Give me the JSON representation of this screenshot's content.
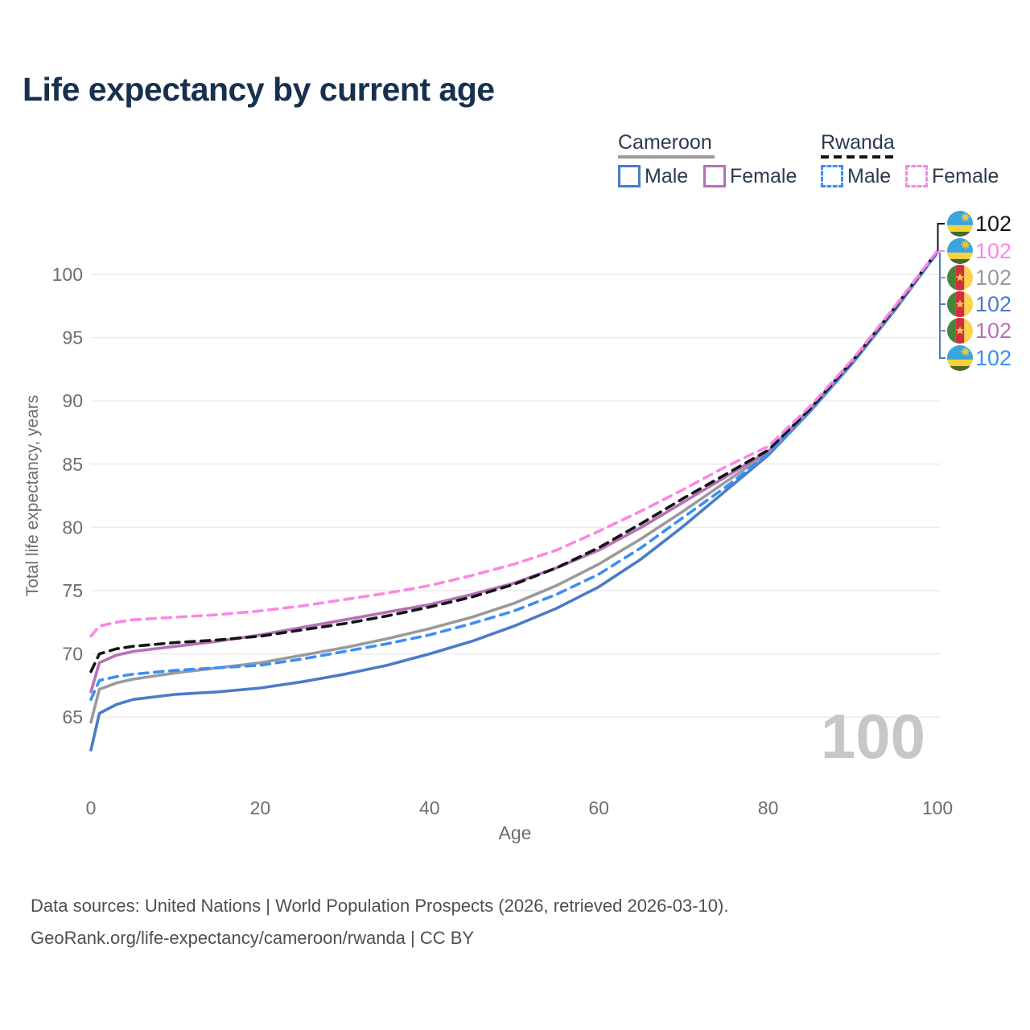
{
  "title": "Life expectancy by current age",
  "legend": {
    "groups": [
      {
        "name": "Cameroon",
        "line_style": "solid",
        "underline_color": "#9a9a9a",
        "items": [
          {
            "label": "Male",
            "color": "#4a7cc7",
            "dashed": false
          },
          {
            "label": "Female",
            "color": "#b671b6",
            "dashed": false
          }
        ]
      },
      {
        "name": "Rwanda",
        "line_style": "dashed",
        "underline_color": "#151515",
        "items": [
          {
            "label": "Male",
            "color": "#3d8ef5",
            "dashed": true
          },
          {
            "label": "Female",
            "color": "#fb87e4",
            "dashed": true
          }
        ]
      }
    ]
  },
  "chart_data": {
    "type": "line",
    "title": "Life expectancy by current age",
    "xlabel": "Age",
    "ylabel": "Total life expectancy, years",
    "x_ticks": [
      0,
      20,
      40,
      60,
      80,
      100
    ],
    "y_ticks": [
      65,
      70,
      75,
      80,
      85,
      90,
      95,
      100
    ],
    "xlim": [
      0,
      100
    ],
    "ylim": [
      62,
      103
    ],
    "grid": "horizontal-only",
    "legend_position": "top-right",
    "age_counter_label": "100",
    "x": [
      0,
      1,
      3,
      5,
      10,
      15,
      20,
      25,
      30,
      35,
      40,
      45,
      50,
      55,
      60,
      65,
      70,
      75,
      80,
      85,
      90,
      95,
      100
    ],
    "series": [
      {
        "name": "Cameroon Male",
        "country": "Cameroon",
        "sex": "Male",
        "color": "#4a7cc7",
        "dashed": false,
        "values": [
          62.4,
          65.3,
          66.0,
          66.4,
          66.8,
          67.0,
          67.3,
          67.8,
          68.4,
          69.1,
          70.0,
          71.0,
          72.2,
          73.6,
          75.3,
          77.5,
          80.1,
          82.9,
          85.7,
          89.2,
          93.0,
          97.2,
          101.75
        ]
      },
      {
        "name": "Cameroon Overall",
        "country": "Cameroon",
        "sex": "Both",
        "color": "#9a9a9a",
        "dashed": false,
        "values": [
          64.6,
          67.2,
          67.7,
          68.0,
          68.5,
          68.9,
          69.3,
          69.9,
          70.5,
          71.2,
          72.0,
          72.9,
          74.0,
          75.4,
          77.1,
          79.1,
          81.3,
          83.6,
          85.9,
          89.3,
          93.1,
          97.3,
          101.78
        ]
      },
      {
        "name": "Cameroon Female",
        "country": "Cameroon",
        "sex": "Female",
        "color": "#b671b6",
        "dashed": false,
        "values": [
          67.0,
          69.3,
          69.9,
          70.2,
          70.6,
          71.0,
          71.5,
          72.1,
          72.7,
          73.3,
          73.9,
          74.7,
          75.6,
          76.8,
          78.2,
          80.0,
          82.0,
          84.0,
          86.0,
          89.4,
          93.2,
          97.4,
          101.82
        ]
      },
      {
        "name": "Rwanda Male",
        "country": "Rwanda",
        "sex": "Male",
        "color": "#3d8ef5",
        "dashed": true,
        "values": [
          66.4,
          67.9,
          68.2,
          68.4,
          68.7,
          68.9,
          69.1,
          69.6,
          70.2,
          70.8,
          71.5,
          72.4,
          73.4,
          74.7,
          76.3,
          78.4,
          80.8,
          83.2,
          85.8,
          89.2,
          93.1,
          97.3,
          101.72
        ]
      },
      {
        "name": "Rwanda Overall",
        "country": "Rwanda",
        "sex": "Both",
        "color": "#151515",
        "dashed": true,
        "values": [
          68.6,
          70.0,
          70.4,
          70.6,
          70.9,
          71.1,
          71.4,
          71.9,
          72.4,
          73.0,
          73.7,
          74.5,
          75.5,
          76.8,
          78.4,
          80.3,
          82.3,
          84.2,
          86.1,
          89.4,
          93.2,
          97.4,
          101.85
        ]
      },
      {
        "name": "Rwanda Female",
        "country": "Rwanda",
        "sex": "Female",
        "color": "#fb87e4",
        "dashed": true,
        "values": [
          71.4,
          72.2,
          72.5,
          72.7,
          72.9,
          73.1,
          73.4,
          73.8,
          74.3,
          74.8,
          75.4,
          76.2,
          77.1,
          78.2,
          79.7,
          81.3,
          83.0,
          84.8,
          86.4,
          89.6,
          93.3,
          97.5,
          101.88
        ]
      }
    ],
    "end_labels": [
      {
        "text": "102",
        "flag": "rwanda",
        "color": "#151515",
        "series": "Rwanda Overall"
      },
      {
        "text": "102",
        "flag": "rwanda",
        "color": "#fb87e4",
        "series": "Rwanda Female"
      },
      {
        "text": "102",
        "flag": "cameroon",
        "color": "#9a9a9a",
        "series": "Cameroon Overall"
      },
      {
        "text": "102",
        "flag": "cameroon",
        "color": "#4a7cc7",
        "series": "Cameroon Male"
      },
      {
        "text": "102",
        "flag": "cameroon",
        "color": "#b671b6",
        "series": "Cameroon Female"
      },
      {
        "text": "102",
        "flag": "rwanda",
        "color": "#3d8ef5",
        "series": "Rwanda Male"
      }
    ],
    "flag_colors": {
      "rwanda": {
        "blue": "#3aa5dd",
        "yellow": "#f6d33c",
        "green": "#47682e",
        "sun": "#f2c431"
      },
      "cameroon": {
        "green": "#45843b",
        "red": "#d22f3e",
        "yellow": "#fbd249",
        "star": "#fbd249"
      }
    }
  },
  "footer": {
    "line1": "Data sources: United Nations | World Population Prospects (2026, retrieved 2026-03-10).",
    "line2": "GeoRank.org/life-expectancy/cameroon/rwanda | CC BY"
  }
}
